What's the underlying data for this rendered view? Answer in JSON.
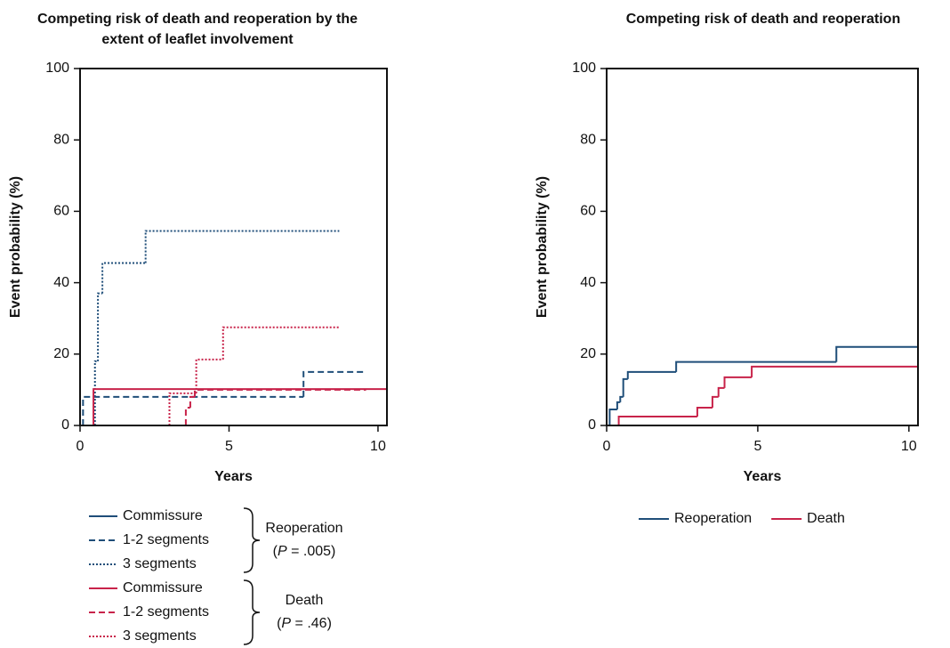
{
  "chart_data": [
    {
      "type": "step",
      "title": [
        "Competing risk of death and reoperation by the",
        "extent of leaflet involvement"
      ],
      "x_label": "Years",
      "y_label": "Event probability (%)",
      "xlim": [
        0,
        10.3
      ],
      "ylim": [
        0,
        100
      ],
      "xticks": [
        0,
        5,
        10
      ],
      "yticks": [
        0,
        20,
        40,
        60,
        80,
        100
      ],
      "legend": "below-stacked",
      "groups": [
        {
          "name": "Reoperation",
          "note": [
            "(",
            "P",
            " = .005)"
          ]
        },
        {
          "name": "Death",
          "note": [
            "(",
            "P",
            " = .46)"
          ]
        }
      ],
      "series": [
        {
          "name": "Commissure",
          "group": 0,
          "color": "#1f4e79",
          "dash": "solid",
          "x": [
            0,
            10.3
          ],
          "values": [
            0,
            0
          ]
        },
        {
          "name": "1-2 segments",
          "group": 0,
          "color": "#1f4e79",
          "dash": "dashed",
          "x": [
            0,
            0.1,
            7.5,
            9.6
          ],
          "values": [
            0,
            8,
            15,
            15
          ]
        },
        {
          "name": "3 segments",
          "group": 0,
          "color": "#1f4e79",
          "dash": "dotted",
          "x": [
            0,
            0.5,
            0.6,
            0.75,
            2.2,
            8.7
          ],
          "values": [
            0,
            18,
            37,
            45.5,
            54.5,
            54.5
          ]
        },
        {
          "name": "Commissure",
          "group": 1,
          "color": "#c8234a",
          "dash": "solid",
          "x": [
            0,
            0.45,
            10.3
          ],
          "values": [
            0,
            10.2,
            10.2
          ]
        },
        {
          "name": "1-2 segments",
          "group": 1,
          "color": "#c8234a",
          "dash": "dashed",
          "x": [
            0,
            3.55,
            3.7,
            3.85,
            9.6
          ],
          "values": [
            0,
            5,
            8,
            10,
            10
          ]
        },
        {
          "name": "3 segments",
          "group": 1,
          "color": "#c8234a",
          "dash": "dotted",
          "x": [
            0,
            3.0,
            3.9,
            4.8,
            8.7
          ],
          "values": [
            0,
            9,
            18.5,
            27.5,
            27.5
          ]
        }
      ]
    },
    {
      "type": "step",
      "title": [
        "Competing risk of death and reoperation"
      ],
      "x_label": "Years",
      "y_label": "Event probability (%)",
      "xlim": [
        0,
        10.3
      ],
      "ylim": [
        0,
        100
      ],
      "xticks": [
        0,
        5,
        10
      ],
      "yticks": [
        0,
        20,
        40,
        60,
        80,
        100
      ],
      "legend": "below-row",
      "series": [
        {
          "name": "Reoperation",
          "color": "#1f4e79",
          "dash": "solid",
          "x": [
            0,
            0.1,
            0.35,
            0.45,
            0.55,
            0.7,
            2.3,
            7.6,
            10.3
          ],
          "values": [
            0,
            4.5,
            6.5,
            8,
            13,
            15,
            17.8,
            22,
            22
          ]
        },
        {
          "name": "Death",
          "color": "#c8234a",
          "dash": "solid",
          "x": [
            0,
            0.4,
            3.0,
            3.5,
            3.7,
            3.9,
            4.8,
            10.3
          ],
          "values": [
            0,
            2.5,
            5,
            8,
            10.5,
            13.5,
            16.5,
            16.5
          ]
        }
      ]
    }
  ]
}
